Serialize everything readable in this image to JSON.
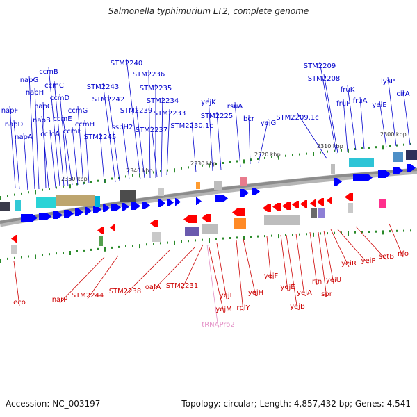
{
  "title": "Salmonella typhimurium LT2, complete genome",
  "accession_text": "Accession: NC_003197",
  "topology_text": "Topology: circular; Length: 4,857,432 bp; Genes: 4,541",
  "colors": {
    "forward_label": "#0000cc",
    "reverse_label": "#cc0000",
    "trna_label": "#e38fc6",
    "forward_arrow": "#0000ff",
    "reverse_arrow": "#ff0000",
    "axis": "#8c8c8c",
    "scale_tick": "#2a8a2a"
  },
  "scale_labels": [
    "2350 kbp",
    "2340 kbp",
    "2330 kbp",
    "2320 kbp",
    "2310 kbp",
    "2300 kbp"
  ],
  "forward_genes": [
    "napF",
    "napD",
    "napA",
    "napG",
    "napH",
    "napC",
    "napB",
    "ccmA",
    "ccmB",
    "ccmC",
    "ccmD",
    "ccmE",
    "ccmF",
    "ccmG",
    "ccmH",
    "STM2245",
    "STM2243",
    "STM2242",
    "sspH2",
    "STM2240",
    "STM2239",
    "STM2236",
    "STM2235",
    "STM2234",
    "STM2237",
    "STM2233",
    "STM2230.1c",
    "yejK",
    "STM2225",
    "rsuA",
    "bcr",
    "yejG",
    "STM2209.1c",
    "STM2209",
    "STM2208",
    "fruK",
    "fruF",
    "fruA",
    "yeiE",
    "lysP",
    "cirA"
  ],
  "reverse_genes": [
    "eco",
    "narP",
    "STM2244",
    "STM2238",
    "oafA",
    "STM2231",
    "yejL",
    "yejM",
    "rplY",
    "yejH",
    "yejF",
    "yejE",
    "yejB",
    "yejA",
    "rtn",
    "spr",
    "yeiU",
    "yeiR",
    "yeiP",
    "setB",
    "nfo"
  ],
  "trna_genes": [
    "tRNAPro2"
  ]
}
